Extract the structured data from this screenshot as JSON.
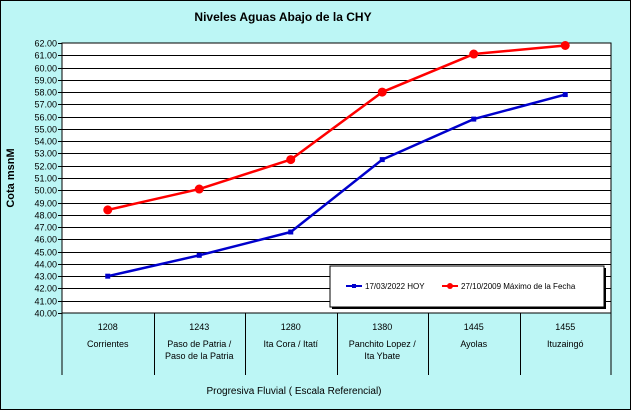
{
  "chart_data": {
    "type": "line",
    "title": "Niveles Aguas Abajo de la CHY",
    "xlabel": "Progresiva Fluvial ( Escala Referencial)",
    "ylabel": "Cota msnM",
    "ylim": [
      40.0,
      62.0
    ],
    "ystep": 1.0,
    "grid": true,
    "legend_position": "bottom-right",
    "categories": [
      {
        "code": "1208",
        "name": [
          "Corrientes"
        ]
      },
      {
        "code": "1243",
        "name": [
          "Paso de Patria /",
          "Paso de la Patria"
        ]
      },
      {
        "code": "1280",
        "name": [
          "Ita Cora / Itatí"
        ]
      },
      {
        "code": "1380",
        "name": [
          "Panchito Lopez /",
          "Ita Ybate"
        ]
      },
      {
        "code": "1445",
        "name": [
          "Ayolas"
        ]
      },
      {
        "code": "1455",
        "name": [
          "Ituzaingó"
        ]
      }
    ],
    "series": [
      {
        "name": "17/03/2022 HOY",
        "color": "#0000cc",
        "marker": "small-square",
        "values": [
          43.0,
          44.7,
          46.6,
          52.5,
          55.8,
          57.8
        ]
      },
      {
        "name": "27/10/2009 Máximo de la Fecha",
        "color": "#ff0000",
        "marker": "circle",
        "values": [
          48.4,
          50.1,
          52.5,
          58.0,
          61.1,
          61.8
        ]
      }
    ]
  }
}
